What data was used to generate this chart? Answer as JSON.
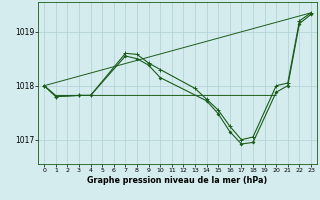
{
  "bg_color": "#d4ecee",
  "grid_color": "#b0d0d4",
  "line_color": "#1a5c1a",
  "xlabel": "Graphe pression niveau de la mer (hPa)",
  "ylim": [
    1016.55,
    1019.55
  ],
  "yticks": [
    1017,
    1018,
    1019
  ],
  "xlim": [
    -0.5,
    23.5
  ],
  "xticks": [
    0,
    1,
    2,
    3,
    4,
    5,
    6,
    7,
    8,
    9,
    10,
    11,
    12,
    13,
    14,
    15,
    16,
    17,
    18,
    19,
    20,
    21,
    22,
    23
  ],
  "series_straight": {
    "x": [
      0,
      23
    ],
    "y": [
      1018.0,
      1019.35
    ]
  },
  "series_plus": {
    "x": [
      0,
      1,
      3,
      4,
      7,
      8,
      9,
      10,
      13,
      14,
      15,
      16,
      17,
      18,
      20,
      21,
      22,
      23
    ],
    "y": [
      1018.0,
      1017.8,
      1017.82,
      1017.82,
      1018.6,
      1018.58,
      1018.42,
      1018.3,
      1017.95,
      1017.75,
      1017.55,
      1017.25,
      1017.0,
      1017.05,
      1018.0,
      1018.05,
      1019.2,
      1019.35
    ]
  },
  "series_diamond": {
    "x": [
      0,
      1,
      3,
      4,
      7,
      8,
      9,
      10,
      14,
      15,
      16,
      17,
      18,
      20,
      21,
      22,
      23
    ],
    "y": [
      1018.0,
      1017.8,
      1017.82,
      1017.82,
      1018.55,
      1018.5,
      1018.38,
      1018.15,
      1017.72,
      1017.48,
      1017.15,
      1016.92,
      1016.95,
      1017.88,
      1018.0,
      1019.15,
      1019.32
    ]
  },
  "series_flat": {
    "x": [
      0,
      1,
      2,
      3,
      4,
      5,
      6,
      7,
      8,
      9,
      10,
      11,
      12,
      13,
      14,
      15,
      16,
      17,
      18,
      19,
      20
    ],
    "y": [
      1018.0,
      1017.82,
      1017.82,
      1017.82,
      1017.82,
      1017.82,
      1017.82,
      1017.82,
      1017.82,
      1017.82,
      1017.82,
      1017.82,
      1017.82,
      1017.82,
      1017.82,
      1017.82,
      1017.82,
      1017.82,
      1017.82,
      1017.82,
      1017.82
    ]
  }
}
